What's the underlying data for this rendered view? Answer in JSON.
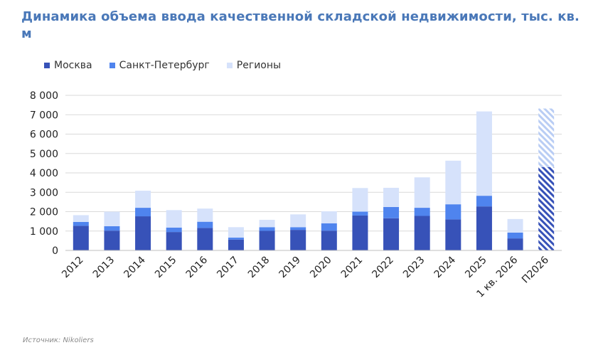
{
  "title": "Динамика объема ввода качественной складской недвижимости, тыс. кв. м",
  "source": "Источник: Nikoliers",
  "colors": {
    "moscow": "#3752b8",
    "spb": "#4f84ee",
    "regions": "#d6e2fb",
    "grid": "#d9d9d9",
    "title": "#4a78b8"
  },
  "legend": [
    {
      "label": "Москва",
      "color": "#3752b8"
    },
    {
      "label": "Санкт-Петербург",
      "color": "#4f84ee"
    },
    {
      "label": "Регионы",
      "color": "#d6e2fb"
    }
  ],
  "chart_data": {
    "type": "bar",
    "stacked": true,
    "title": "Динамика объема ввода качественной складской недвижимости, тыс. кв. м",
    "xlabel": "",
    "ylabel": "",
    "ylim": [
      0,
      8000
    ],
    "yticks": [
      0,
      1000,
      2000,
      3000,
      4000,
      5000,
      6000,
      7000,
      8000
    ],
    "ytick_labels": [
      "0",
      "1 000",
      "2 000",
      "3 000",
      "4 000",
      "5 000",
      "6 000",
      "7 000",
      "8 000"
    ],
    "grid": true,
    "legend_position": "top-left",
    "categories": [
      "2012",
      "2013",
      "2014",
      "2015",
      "2016",
      "2017",
      "2018",
      "2019",
      "2020",
      "2021",
      "2022",
      "2023",
      "2024",
      "2025",
      "1 кв. 2026",
      "П2026"
    ],
    "series": [
      {
        "name": "Москва",
        "values": [
          1270,
          1020,
          1760,
          950,
          1160,
          560,
          1010,
          1060,
          1020,
          1800,
          1660,
          1780,
          1600,
          2270,
          620,
          4300
        ]
      },
      {
        "name": "Санкт-Петербург",
        "values": [
          200,
          230,
          440,
          230,
          320,
          100,
          190,
          140,
          380,
          200,
          580,
          420,
          780,
          550,
          300,
          0
        ]
      },
      {
        "name": "Регионы",
        "values": [
          350,
          750,
          880,
          900,
          680,
          540,
          380,
          660,
          620,
          1220,
          990,
          1570,
          2250,
          4350,
          700,
          3020
        ]
      }
    ],
    "forecast_category": "П2026"
  }
}
